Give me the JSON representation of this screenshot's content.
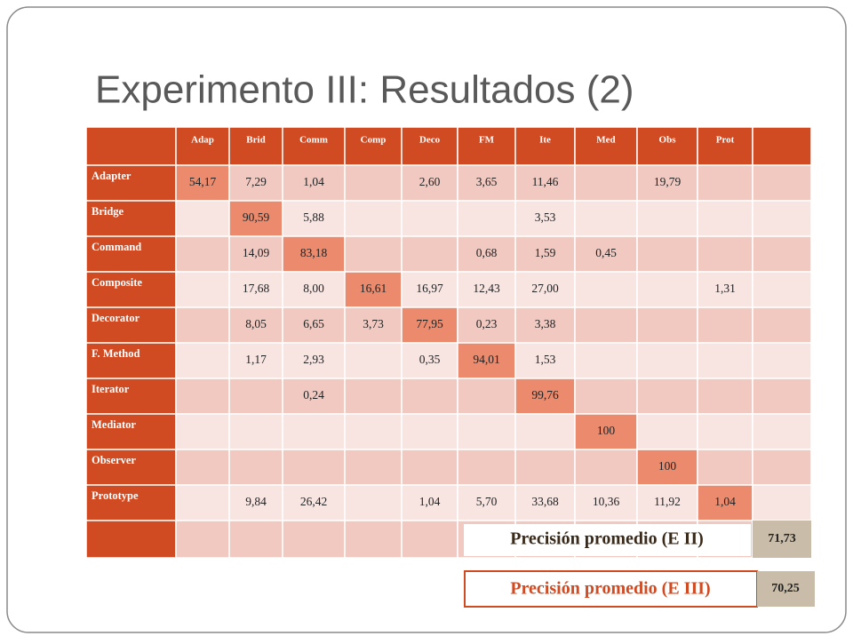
{
  "title": "Experimento III: Resultados (2)",
  "table": {
    "headers": [
      "Adap",
      "Brid",
      "Comm",
      "Comp",
      "Deco",
      "FM",
      "Ite",
      "Med",
      "Obs",
      "Prot"
    ],
    "rows": [
      {
        "label": "Adapter",
        "highlight": 0,
        "cells": [
          "54,17",
          "7,29",
          "1,04",
          null,
          "2,60",
          "3,65",
          "11,46",
          null,
          "19,79",
          null
        ]
      },
      {
        "label": "Bridge",
        "highlight": 1,
        "cells": [
          null,
          "90,59",
          "5,88",
          null,
          null,
          null,
          "3,53",
          null,
          null,
          null
        ]
      },
      {
        "label": "Command",
        "highlight": 2,
        "cells": [
          null,
          "14,09",
          "83,18",
          null,
          null,
          "0,68",
          "1,59",
          "0,45",
          null,
          null
        ]
      },
      {
        "label": "Composite",
        "highlight": 3,
        "cells": [
          null,
          "17,68",
          "8,00",
          "16,61",
          "16,97",
          "12,43",
          "27,00",
          null,
          null,
          "1,31"
        ]
      },
      {
        "label": "Decorator",
        "highlight": 4,
        "cells": [
          null,
          "8,05",
          "6,65",
          "3,73",
          "77,95",
          "0,23",
          "3,38",
          null,
          null,
          null
        ]
      },
      {
        "label": "F. Method",
        "highlight": 5,
        "cells": [
          null,
          "1,17",
          "2,93",
          null,
          "0,35",
          "94,01",
          "1,53",
          null,
          null,
          null
        ]
      },
      {
        "label": "Iterator",
        "highlight": 6,
        "cells": [
          null,
          null,
          "0,24",
          null,
          null,
          null,
          "99,76",
          null,
          null,
          null
        ]
      },
      {
        "label": "Mediator",
        "highlight": 7,
        "cells": [
          null,
          null,
          null,
          null,
          null,
          null,
          null,
          "100",
          null,
          null
        ]
      },
      {
        "label": "Observer",
        "highlight": 8,
        "cells": [
          null,
          null,
          null,
          null,
          null,
          null,
          null,
          null,
          "100",
          null
        ]
      },
      {
        "label": "Prototype",
        "highlight": 9,
        "cells": [
          null,
          "9,84",
          "26,42",
          null,
          "1,04",
          "5,70",
          "33,68",
          "10,36",
          "11,92",
          "1,04"
        ]
      }
    ]
  },
  "summary_e2": {
    "label": "Precisión promedio (E II)",
    "value": "71,73"
  },
  "summary_e3": {
    "label": "Precisión promedio (E III)",
    "value": "70,25"
  }
}
